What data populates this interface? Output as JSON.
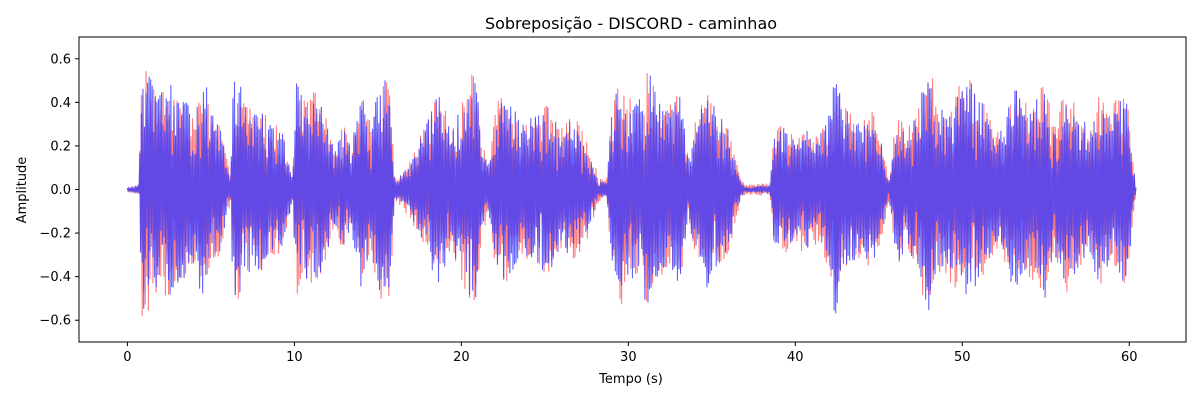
{
  "chart_data": {
    "type": "line",
    "title": "Sobreposição - DISCORD - caminhao",
    "xlabel": "Tempo (s)",
    "ylabel": "Amplitude",
    "xlim": [
      -2.9,
      63.4
    ],
    "ylim": [
      -0.7,
      0.7
    ],
    "x_ticks": [
      0,
      10,
      20,
      30,
      40,
      50,
      60
    ],
    "x_tick_labels": [
      "0",
      "10",
      "20",
      "30",
      "40",
      "50",
      "60"
    ],
    "y_ticks": [
      -0.6,
      -0.4,
      -0.2,
      0.0,
      0.2,
      0.4,
      0.6
    ],
    "y_tick_labels": [
      "−0.6",
      "−0.4",
      "−0.2",
      "0.0",
      "0.2",
      "0.4",
      "0.6"
    ],
    "grid": false,
    "legend": false,
    "duration_s": 60.4,
    "series": [
      {
        "color": "#ff6f6f",
        "opacity": 0.9,
        "seed": 7,
        "envelope": [
          [
            0.0,
            0.01
          ],
          [
            0.7,
            0.02
          ],
          [
            0.85,
            0.62
          ],
          [
            1.3,
            0.55
          ],
          [
            1.6,
            0.5
          ],
          [
            2.0,
            0.45
          ],
          [
            2.4,
            0.5
          ],
          [
            3.0,
            0.45
          ],
          [
            3.5,
            0.4
          ],
          [
            4.0,
            0.35
          ],
          [
            4.6,
            0.5
          ],
          [
            5.0,
            0.35
          ],
          [
            5.5,
            0.3
          ],
          [
            6.2,
            0.05
          ],
          [
            6.3,
            0.55
          ],
          [
            7.0,
            0.45
          ],
          [
            7.5,
            0.35
          ],
          [
            8.0,
            0.4
          ],
          [
            8.5,
            0.3
          ],
          [
            9.2,
            0.3
          ],
          [
            9.9,
            0.05
          ],
          [
            10.1,
            0.5
          ],
          [
            10.6,
            0.42
          ],
          [
            11.2,
            0.45
          ],
          [
            11.8,
            0.38
          ],
          [
            12.3,
            0.2
          ],
          [
            13.0,
            0.3
          ],
          [
            13.4,
            0.2
          ],
          [
            14.0,
            0.42
          ],
          [
            14.6,
            0.3
          ],
          [
            15.1,
            0.5
          ],
          [
            15.7,
            0.55
          ],
          [
            16.0,
            0.05
          ],
          [
            16.2,
            0.06
          ],
          [
            17.0,
            0.14
          ],
          [
            18.0,
            0.33
          ],
          [
            18.6,
            0.45
          ],
          [
            19.4,
            0.3
          ],
          [
            20.1,
            0.45
          ],
          [
            20.8,
            0.55
          ],
          [
            21.2,
            0.25
          ],
          [
            21.6,
            0.1
          ],
          [
            22.2,
            0.45
          ],
          [
            23.0,
            0.4
          ],
          [
            23.6,
            0.3
          ],
          [
            24.5,
            0.35
          ],
          [
            25.2,
            0.4
          ],
          [
            26.0,
            0.28
          ],
          [
            26.6,
            0.35
          ],
          [
            27.5,
            0.25
          ],
          [
            28.2,
            0.06
          ],
          [
            28.7,
            0.04
          ],
          [
            29.0,
            0.35
          ],
          [
            29.5,
            0.55
          ],
          [
            30.0,
            0.45
          ],
          [
            30.6,
            0.4
          ],
          [
            31.2,
            0.55
          ],
          [
            31.8,
            0.4
          ],
          [
            32.4,
            0.38
          ],
          [
            33.1,
            0.45
          ],
          [
            33.6,
            0.15
          ],
          [
            34.1,
            0.35
          ],
          [
            34.7,
            0.45
          ],
          [
            35.3,
            0.38
          ],
          [
            36.0,
            0.3
          ],
          [
            36.7,
            0.05
          ],
          [
            37.0,
            0.02
          ],
          [
            38.5,
            0.03
          ],
          [
            38.7,
            0.28
          ],
          [
            39.3,
            0.3
          ],
          [
            40.0,
            0.25
          ],
          [
            40.6,
            0.3
          ],
          [
            41.3,
            0.25
          ],
          [
            42.0,
            0.38
          ],
          [
            42.4,
            0.63
          ],
          [
            42.8,
            0.4
          ],
          [
            43.3,
            0.35
          ],
          [
            44.0,
            0.3
          ],
          [
            44.6,
            0.38
          ],
          [
            45.2,
            0.22
          ],
          [
            45.6,
            0.05
          ],
          [
            46.1,
            0.36
          ],
          [
            46.7,
            0.28
          ],
          [
            47.4,
            0.4
          ],
          [
            48.0,
            0.62
          ],
          [
            48.5,
            0.38
          ],
          [
            49.2,
            0.42
          ],
          [
            49.8,
            0.48
          ],
          [
            50.5,
            0.52
          ],
          [
            51.2,
            0.42
          ],
          [
            51.8,
            0.3
          ],
          [
            52.4,
            0.28
          ],
          [
            53.0,
            0.5
          ],
          [
            53.6,
            0.4
          ],
          [
            54.3,
            0.42
          ],
          [
            55.0,
            0.5
          ],
          [
            55.5,
            0.3
          ],
          [
            56.2,
            0.48
          ],
          [
            57.0,
            0.38
          ],
          [
            57.6,
            0.3
          ],
          [
            58.2,
            0.45
          ],
          [
            58.8,
            0.35
          ],
          [
            59.4,
            0.45
          ],
          [
            59.9,
            0.42
          ],
          [
            60.3,
            0.1
          ],
          [
            60.4,
            0.01
          ]
        ]
      },
      {
        "color": "#3b3bff",
        "opacity": 0.8,
        "seed": 13,
        "envelope": [
          [
            0.0,
            0.01
          ],
          [
            0.7,
            0.02
          ],
          [
            0.85,
            0.6
          ],
          [
            1.3,
            0.52
          ],
          [
            1.6,
            0.48
          ],
          [
            2.0,
            0.45
          ],
          [
            2.4,
            0.5
          ],
          [
            3.0,
            0.45
          ],
          [
            3.5,
            0.4
          ],
          [
            4.0,
            0.35
          ],
          [
            4.6,
            0.55
          ],
          [
            5.0,
            0.35
          ],
          [
            5.5,
            0.3
          ],
          [
            6.2,
            0.04
          ],
          [
            6.3,
            0.52
          ],
          [
            7.0,
            0.45
          ],
          [
            7.5,
            0.35
          ],
          [
            8.0,
            0.38
          ],
          [
            8.5,
            0.3
          ],
          [
            9.2,
            0.3
          ],
          [
            9.9,
            0.04
          ],
          [
            10.1,
            0.5
          ],
          [
            10.6,
            0.4
          ],
          [
            11.2,
            0.45
          ],
          [
            11.8,
            0.35
          ],
          [
            12.3,
            0.2
          ],
          [
            13.0,
            0.28
          ],
          [
            13.4,
            0.2
          ],
          [
            14.0,
            0.45
          ],
          [
            14.6,
            0.3
          ],
          [
            15.1,
            0.5
          ],
          [
            15.7,
            0.52
          ],
          [
            16.0,
            0.04
          ],
          [
            16.2,
            0.05
          ],
          [
            17.0,
            0.12
          ],
          [
            18.0,
            0.32
          ],
          [
            18.6,
            0.45
          ],
          [
            19.4,
            0.28
          ],
          [
            20.1,
            0.42
          ],
          [
            20.8,
            0.55
          ],
          [
            21.2,
            0.25
          ],
          [
            21.6,
            0.1
          ],
          [
            22.2,
            0.42
          ],
          [
            23.0,
            0.4
          ],
          [
            23.6,
            0.3
          ],
          [
            24.5,
            0.35
          ],
          [
            25.2,
            0.4
          ],
          [
            26.0,
            0.25
          ],
          [
            26.6,
            0.33
          ],
          [
            27.5,
            0.22
          ],
          [
            28.2,
            0.04
          ],
          [
            28.7,
            0.03
          ],
          [
            29.0,
            0.35
          ],
          [
            29.5,
            0.52
          ],
          [
            30.0,
            0.42
          ],
          [
            30.6,
            0.4
          ],
          [
            31.2,
            0.56
          ],
          [
            31.8,
            0.4
          ],
          [
            32.4,
            0.36
          ],
          [
            33.1,
            0.45
          ],
          [
            33.6,
            0.14
          ],
          [
            34.1,
            0.32
          ],
          [
            34.7,
            0.45
          ],
          [
            35.3,
            0.36
          ],
          [
            36.0,
            0.28
          ],
          [
            36.7,
            0.04
          ],
          [
            37.0,
            0.01
          ],
          [
            38.5,
            0.02
          ],
          [
            38.7,
            0.26
          ],
          [
            39.3,
            0.28
          ],
          [
            40.0,
            0.22
          ],
          [
            40.6,
            0.28
          ],
          [
            41.3,
            0.22
          ],
          [
            42.0,
            0.35
          ],
          [
            42.4,
            0.6
          ],
          [
            42.8,
            0.38
          ],
          [
            43.3,
            0.35
          ],
          [
            44.0,
            0.28
          ],
          [
            44.6,
            0.36
          ],
          [
            45.2,
            0.2
          ],
          [
            45.6,
            0.04
          ],
          [
            46.1,
            0.34
          ],
          [
            46.7,
            0.26
          ],
          [
            47.4,
            0.38
          ],
          [
            48.0,
            0.6
          ],
          [
            48.5,
            0.35
          ],
          [
            49.2,
            0.4
          ],
          [
            49.8,
            0.45
          ],
          [
            50.5,
            0.5
          ],
          [
            51.2,
            0.4
          ],
          [
            51.8,
            0.28
          ],
          [
            52.4,
            0.28
          ],
          [
            53.0,
            0.5
          ],
          [
            53.6,
            0.4
          ],
          [
            54.3,
            0.42
          ],
          [
            55.0,
            0.5
          ],
          [
            55.5,
            0.3
          ],
          [
            56.2,
            0.45
          ],
          [
            57.0,
            0.36
          ],
          [
            57.6,
            0.3
          ],
          [
            58.2,
            0.45
          ],
          [
            58.8,
            0.35
          ],
          [
            59.4,
            0.45
          ],
          [
            59.9,
            0.4
          ],
          [
            60.3,
            0.08
          ],
          [
            60.4,
            0.01
          ]
        ]
      }
    ]
  }
}
